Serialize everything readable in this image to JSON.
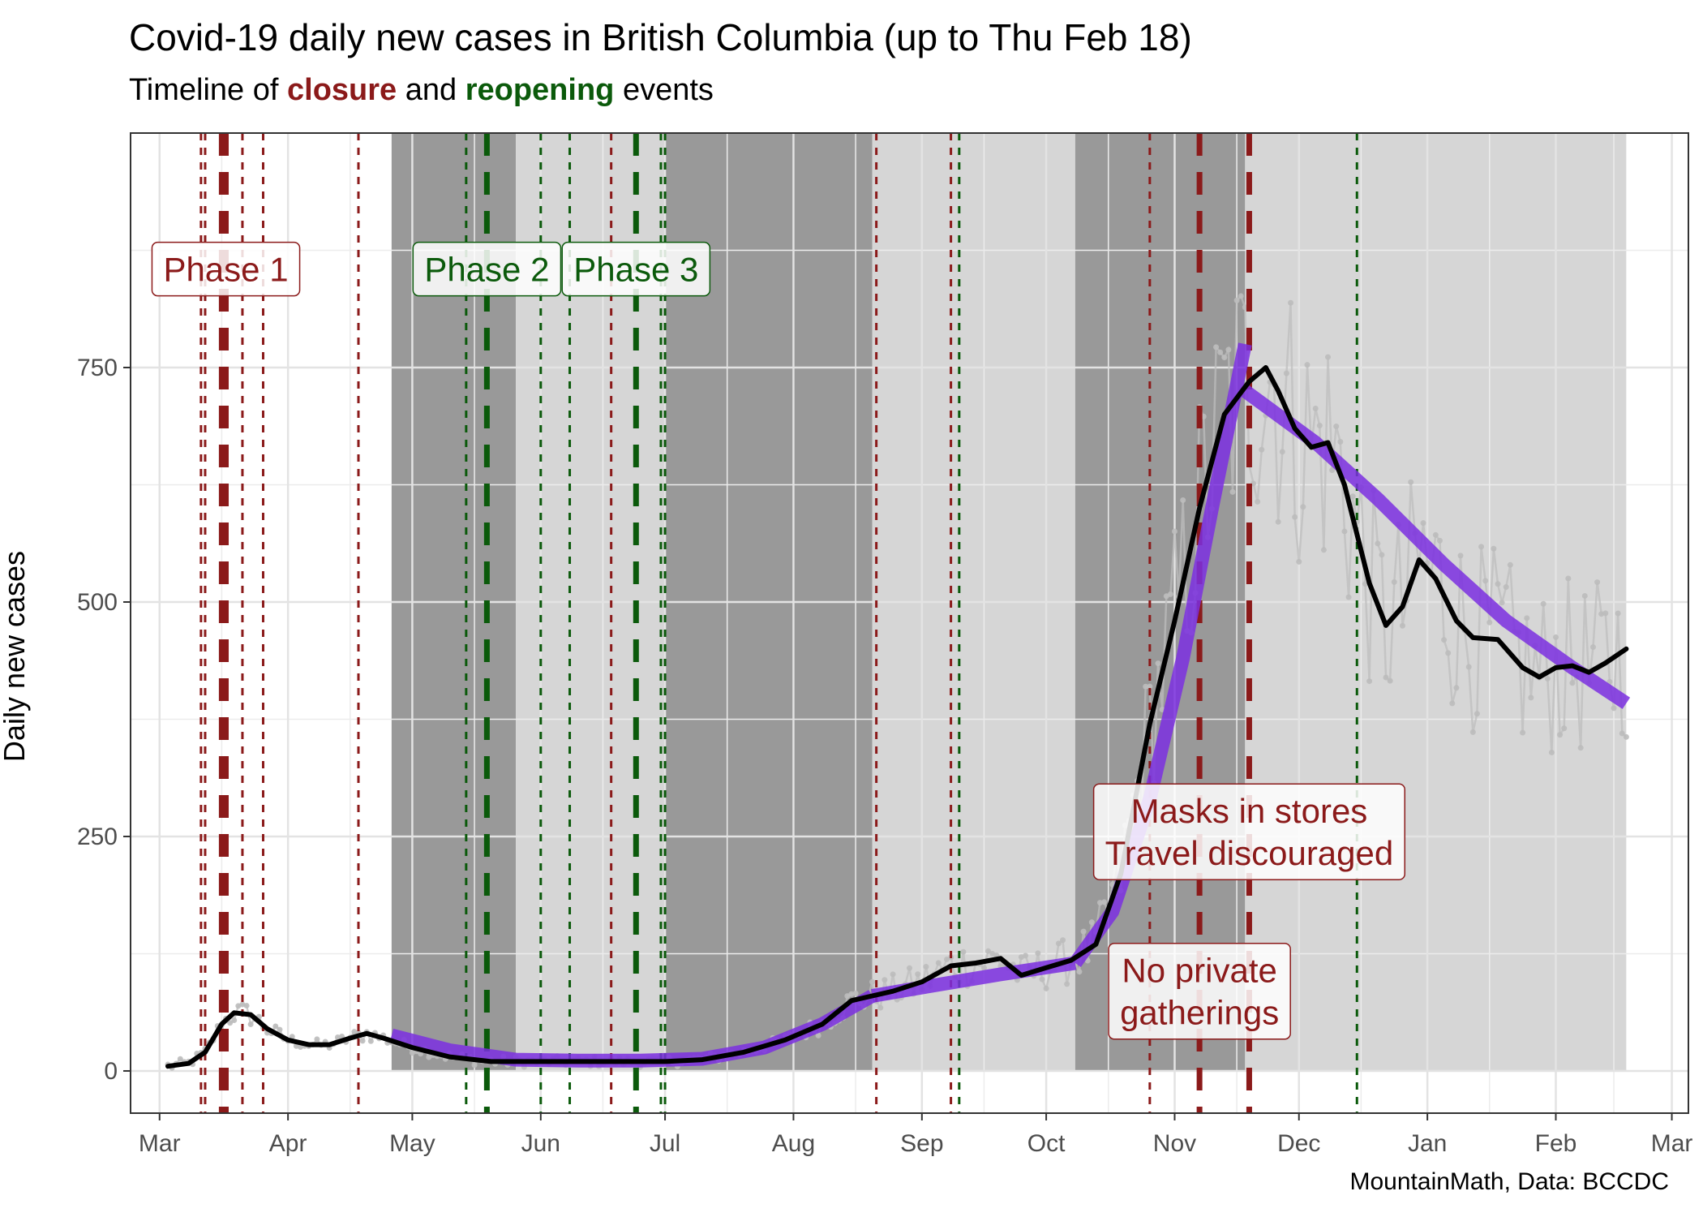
{
  "title": "Covid-19 daily new cases in British Columbia (up to Thu Feb 18)",
  "subtitle": {
    "prefix": "Timeline of ",
    "closure": "closure",
    "middle": " and ",
    "reopening": "reopening",
    "suffix": " events"
  },
  "caption": "MountainMath, Data: BCCDC",
  "colors": {
    "closure": "#8b1a1a",
    "reopening": "#0b5a0b",
    "trend_fit": "#7b2fe0",
    "smoothed": "#000000",
    "raw": "#bdbdbd",
    "shade_dark": "#999999",
    "shade_light": "#d6d6d6"
  },
  "chart_data": {
    "type": "line",
    "title": "Covid-19 daily new cases in British Columbia (up to Thu Feb 18)",
    "xlabel": "",
    "ylabel": "Daily new cases",
    "x_type": "date",
    "xlim": [
      "2020-02-23",
      "2021-03-05"
    ],
    "ylim": [
      -45,
      1000
    ],
    "grid": true,
    "y_ticks": [
      0,
      250,
      500,
      750
    ],
    "x_ticks": [
      {
        "date": "2020-03-01",
        "label": "Mar"
      },
      {
        "date": "2020-04-01",
        "label": "Apr"
      },
      {
        "date": "2020-05-01",
        "label": "May"
      },
      {
        "date": "2020-06-01",
        "label": "Jun"
      },
      {
        "date": "2020-07-01",
        "label": "Jul"
      },
      {
        "date": "2020-08-01",
        "label": "Aug"
      },
      {
        "date": "2020-09-01",
        "label": "Sep"
      },
      {
        "date": "2020-10-01",
        "label": "Oct"
      },
      {
        "date": "2020-11-01",
        "label": "Nov"
      },
      {
        "date": "2020-12-01",
        "label": "Dec"
      },
      {
        "date": "2021-01-01",
        "label": "Jan"
      },
      {
        "date": "2021-02-01",
        "label": "Feb"
      },
      {
        "date": "2021-03-01",
        "label": "Mar"
      }
    ],
    "shaded_periods": [
      {
        "start": "2020-04-26",
        "end": "2020-05-26",
        "shade": "dark"
      },
      {
        "start": "2020-05-26",
        "end": "2020-07-01",
        "shade": "light"
      },
      {
        "start": "2020-07-01",
        "end": "2020-08-20",
        "shade": "dark"
      },
      {
        "start": "2020-08-20",
        "end": "2020-10-08",
        "shade": "light"
      },
      {
        "start": "2020-10-08",
        "end": "2020-11-18",
        "shade": "dark"
      },
      {
        "start": "2020-11-18",
        "end": "2021-02-18",
        "shade": "light"
      }
    ],
    "events": [
      {
        "date": "2020-03-11",
        "kind": "closure",
        "major": false
      },
      {
        "date": "2020-03-12",
        "kind": "closure",
        "major": false
      },
      {
        "date": "2020-03-16",
        "kind": "closure",
        "major": true
      },
      {
        "date": "2020-03-17",
        "kind": "closure",
        "major": true
      },
      {
        "date": "2020-03-21",
        "kind": "closure",
        "major": false
      },
      {
        "date": "2020-03-26",
        "kind": "closure",
        "major": false
      },
      {
        "date": "2020-04-18",
        "kind": "closure",
        "major": false
      },
      {
        "date": "2020-05-14",
        "kind": "reopening",
        "major": false
      },
      {
        "date": "2020-05-19",
        "kind": "reopening",
        "major": true
      },
      {
        "date": "2020-06-01",
        "kind": "reopening",
        "major": false
      },
      {
        "date": "2020-06-08",
        "kind": "reopening",
        "major": false
      },
      {
        "date": "2020-06-18",
        "kind": "closure",
        "major": false
      },
      {
        "date": "2020-06-24",
        "kind": "reopening",
        "major": true
      },
      {
        "date": "2020-06-30",
        "kind": "reopening",
        "major": false
      },
      {
        "date": "2020-07-01",
        "kind": "reopening",
        "major": false
      },
      {
        "date": "2020-08-21",
        "kind": "closure",
        "major": false
      },
      {
        "date": "2020-09-08",
        "kind": "closure",
        "major": false
      },
      {
        "date": "2020-09-10",
        "kind": "reopening",
        "major": false
      },
      {
        "date": "2020-10-26",
        "kind": "closure",
        "major": false
      },
      {
        "date": "2020-11-07",
        "kind": "closure",
        "major": true
      },
      {
        "date": "2020-11-19",
        "kind": "closure",
        "major": true
      },
      {
        "date": "2020-12-15",
        "kind": "reopening",
        "major": false
      }
    ],
    "annotations": [
      {
        "lines": [
          "Phase 1"
        ],
        "kind": "closure",
        "date": "2020-03-17",
        "y": 855
      },
      {
        "lines": [
          "Phase 2"
        ],
        "kind": "reopening",
        "date": "2020-05-19",
        "y": 855
      },
      {
        "lines": [
          "Phase 3"
        ],
        "kind": "reopening",
        "date": "2020-06-24",
        "y": 855
      },
      {
        "lines": [
          "Masks in stores",
          "Travel discouraged"
        ],
        "kind": "closure",
        "date": "2020-11-19",
        "y": 255
      },
      {
        "lines": [
          "No private",
          "gatherings"
        ],
        "kind": "closure",
        "date": "2020-11-07",
        "y": 85
      }
    ],
    "series": [
      {
        "style": "smoothed",
        "x": [
          "2020-03-03",
          "2020-03-08",
          "2020-03-12",
          "2020-03-16",
          "2020-03-19",
          "2020-03-23",
          "2020-03-27",
          "2020-04-01",
          "2020-04-06",
          "2020-04-11",
          "2020-04-16",
          "2020-04-20",
          "2020-04-24",
          "2020-05-01",
          "2020-05-10",
          "2020-05-20",
          "2020-06-01",
          "2020-06-10",
          "2020-06-20",
          "2020-07-01",
          "2020-07-10",
          "2020-07-20",
          "2020-07-30",
          "2020-08-08",
          "2020-08-15",
          "2020-08-20",
          "2020-08-25",
          "2020-09-01",
          "2020-09-08",
          "2020-09-14",
          "2020-09-20",
          "2020-09-25",
          "2020-10-01",
          "2020-10-07",
          "2020-10-13",
          "2020-10-19",
          "2020-10-26",
          "2020-11-01",
          "2020-11-07",
          "2020-11-13",
          "2020-11-19",
          "2020-11-23",
          "2020-11-26",
          "2020-11-30",
          "2020-12-04",
          "2020-12-08",
          "2020-12-12",
          "2020-12-18",
          "2020-12-22",
          "2020-12-26",
          "2020-12-30",
          "2021-01-03",
          "2021-01-08",
          "2021-01-12",
          "2021-01-18",
          "2021-01-24",
          "2021-01-28",
          "2021-02-01",
          "2021-02-05",
          "2021-02-09",
          "2021-02-13",
          "2021-02-18"
        ],
        "y": [
          5,
          8,
          20,
          50,
          62,
          60,
          45,
          33,
          28,
          28,
          35,
          40,
          35,
          25,
          15,
          10,
          10,
          10,
          10,
          10,
          12,
          20,
          33,
          50,
          75,
          80,
          85,
          95,
          112,
          115,
          120,
          102,
          110,
          118,
          135,
          210,
          370,
          480,
          600,
          700,
          735,
          750,
          725,
          685,
          665,
          670,
          625,
          520,
          475,
          495,
          545,
          525,
          480,
          462,
          460,
          430,
          420,
          430,
          432,
          425,
          435,
          450
        ]
      },
      {
        "style": "trend",
        "segments": [
          {
            "x": [
              "2020-04-26",
              "2020-05-10",
              "2020-05-26",
              "2020-06-10",
              "2020-06-25",
              "2020-07-10",
              "2020-07-25",
              "2020-08-08",
              "2020-08-20"
            ],
            "y": [
              38,
              22,
              12,
              11,
              11,
              13,
              25,
              50,
              80
            ]
          },
          {
            "x": [
              "2020-08-20",
              "2020-09-05",
              "2020-09-20",
              "2020-10-08"
            ],
            "y": [
              80,
              92,
              103,
              115
            ]
          },
          {
            "x": [
              "2020-10-08",
              "2020-10-17",
              "2020-10-26",
              "2020-11-03",
              "2020-11-10",
              "2020-11-18"
            ],
            "y": [
              115,
              170,
              290,
              440,
              600,
              775
            ]
          },
          {
            "x": [
              "2020-11-18",
              "2020-12-05",
              "2020-12-20",
              "2021-01-05",
              "2021-01-20",
              "2021-02-05",
              "2021-02-18"
            ],
            "y": [
              725,
              670,
              610,
              540,
              480,
              430,
              392
            ]
          }
        ]
      }
    ]
  }
}
